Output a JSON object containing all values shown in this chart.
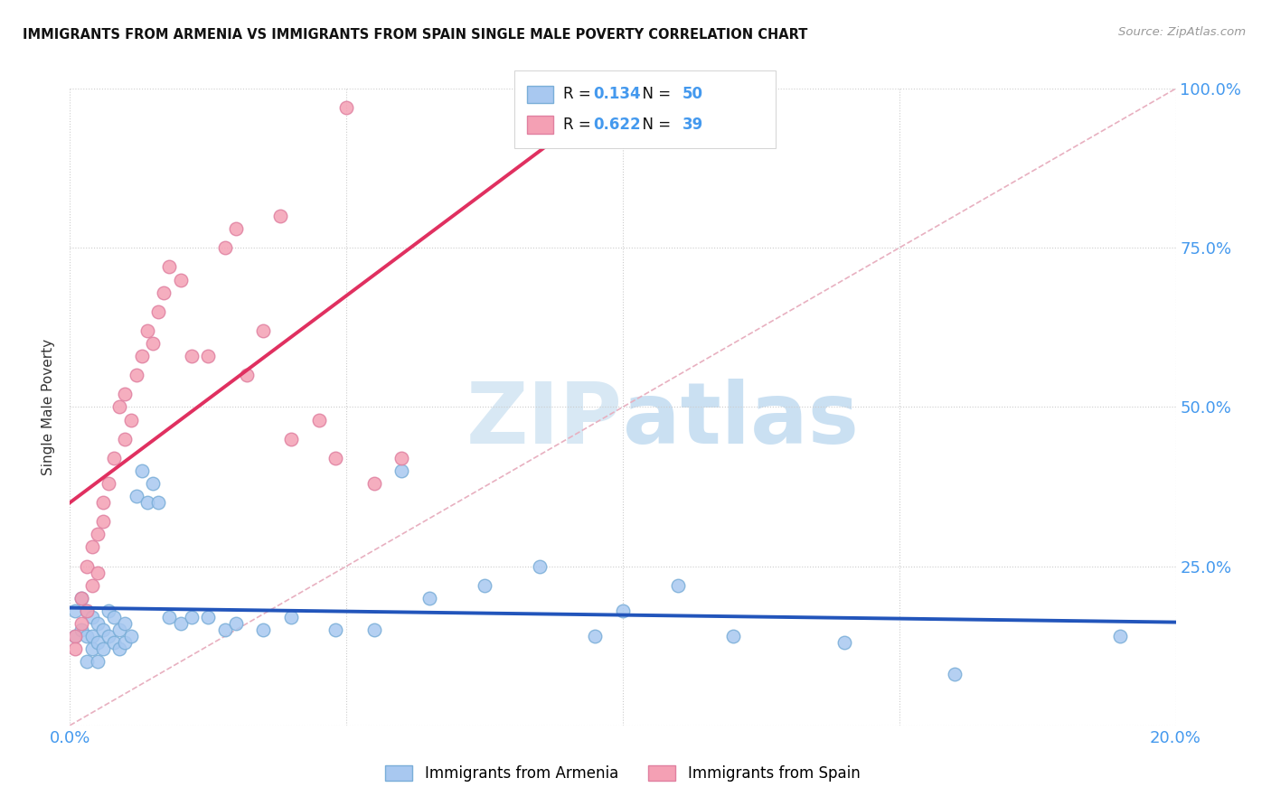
{
  "title": "IMMIGRANTS FROM ARMENIA VS IMMIGRANTS FROM SPAIN SINGLE MALE POVERTY CORRELATION CHART",
  "source": "Source: ZipAtlas.com",
  "ylabel_left": "Single Male Poverty",
  "xlim": [
    0.0,
    0.2
  ],
  "ylim": [
    0.0,
    1.0
  ],
  "xtick_positions": [
    0.0,
    0.05,
    0.1,
    0.15,
    0.2
  ],
  "xtick_labels": [
    "0.0%",
    "",
    "",
    "",
    "20.0%"
  ],
  "ytick_positions": [
    0.0,
    0.25,
    0.5,
    0.75,
    1.0
  ],
  "ytick_labels_right": [
    "",
    "25.0%",
    "50.0%",
    "75.0%",
    "100.0%"
  ],
  "armenia_R": 0.134,
  "armenia_N": 50,
  "spain_R": 0.622,
  "spain_N": 39,
  "armenia_color": "#a8c8f0",
  "armenia_edge_color": "#7aaed8",
  "spain_color": "#f4a0b4",
  "spain_edge_color": "#e080a0",
  "armenia_line_color": "#2255bb",
  "spain_line_color": "#e03060",
  "diag_color": "#e8b0c0",
  "diag_style": "--",
  "grid_color": "#cccccc",
  "grid_style": ":",
  "background_color": "#ffffff",
  "watermark_color": "#d8eaf8",
  "armenia_x": [
    0.001,
    0.001,
    0.002,
    0.002,
    0.003,
    0.003,
    0.003,
    0.004,
    0.004,
    0.004,
    0.005,
    0.005,
    0.005,
    0.006,
    0.006,
    0.007,
    0.007,
    0.008,
    0.008,
    0.009,
    0.009,
    0.01,
    0.01,
    0.011,
    0.012,
    0.013,
    0.014,
    0.015,
    0.016,
    0.018,
    0.02,
    0.022,
    0.025,
    0.028,
    0.03,
    0.035,
    0.04,
    0.048,
    0.055,
    0.06,
    0.065,
    0.075,
    0.085,
    0.095,
    0.1,
    0.11,
    0.12,
    0.14,
    0.16,
    0.19
  ],
  "armenia_y": [
    0.18,
    0.14,
    0.2,
    0.15,
    0.18,
    0.14,
    0.1,
    0.17,
    0.14,
    0.12,
    0.16,
    0.13,
    0.1,
    0.15,
    0.12,
    0.18,
    0.14,
    0.17,
    0.13,
    0.15,
    0.12,
    0.16,
    0.13,
    0.14,
    0.36,
    0.4,
    0.35,
    0.38,
    0.35,
    0.17,
    0.16,
    0.17,
    0.17,
    0.15,
    0.16,
    0.15,
    0.17,
    0.15,
    0.15,
    0.4,
    0.2,
    0.22,
    0.25,
    0.14,
    0.18,
    0.22,
    0.14,
    0.13,
    0.08,
    0.14
  ],
  "spain_x": [
    0.001,
    0.001,
    0.002,
    0.002,
    0.003,
    0.003,
    0.004,
    0.004,
    0.005,
    0.005,
    0.006,
    0.006,
    0.007,
    0.008,
    0.009,
    0.01,
    0.01,
    0.011,
    0.012,
    0.013,
    0.014,
    0.015,
    0.016,
    0.017,
    0.018,
    0.02,
    0.022,
    0.025,
    0.028,
    0.03,
    0.032,
    0.035,
    0.038,
    0.04,
    0.045,
    0.048,
    0.05,
    0.055,
    0.06
  ],
  "spain_y": [
    0.14,
    0.12,
    0.16,
    0.2,
    0.18,
    0.25,
    0.22,
    0.28,
    0.24,
    0.3,
    0.35,
    0.32,
    0.38,
    0.42,
    0.5,
    0.45,
    0.52,
    0.48,
    0.55,
    0.58,
    0.62,
    0.6,
    0.65,
    0.68,
    0.72,
    0.7,
    0.58,
    0.58,
    0.75,
    0.78,
    0.55,
    0.62,
    0.8,
    0.45,
    0.48,
    0.42,
    0.97,
    0.38,
    0.42
  ]
}
